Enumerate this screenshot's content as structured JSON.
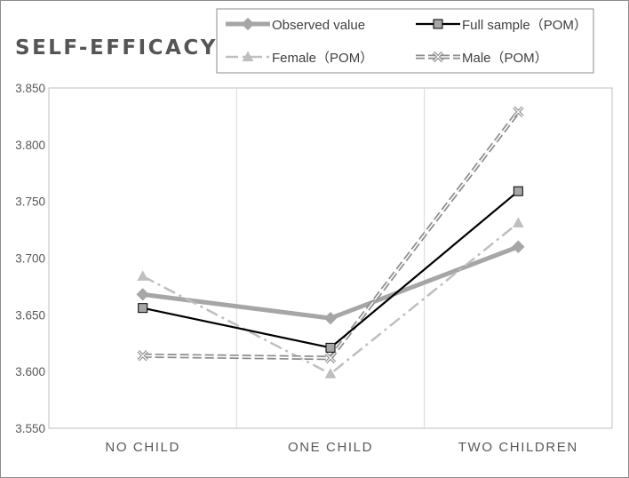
{
  "chart_data": {
    "type": "line",
    "title": "SELF-EFFICACY",
    "categories": [
      "NO CHILD",
      "ONE CHILD",
      "TWO CHILDREN"
    ],
    "ylim": [
      3.55,
      3.85
    ],
    "yticks": [
      "3.550",
      "3.600",
      "3.650",
      "3.700",
      "3.750",
      "3.800",
      "3.850"
    ],
    "xlabel": "",
    "ylabel": "",
    "grid": "vertical",
    "legend_position": "top-right",
    "series": [
      {
        "name": "Observed value",
        "values": [
          3.668,
          3.647,
          3.71
        ],
        "color": "#a6a6a6",
        "style": "solid",
        "marker": "diamond"
      },
      {
        "name": "Full sample（POM）",
        "values": [
          3.656,
          3.621,
          3.759
        ],
        "color": "#000000",
        "style": "solid",
        "marker": "square"
      },
      {
        "name": "Female（POM）",
        "values": [
          3.684,
          3.598,
          3.731
        ],
        "color": "#bfbfbf",
        "style": "dashdot",
        "marker": "triangle"
      },
      {
        "name": "Male（POM）",
        "values": [
          3.614,
          3.612,
          3.829
        ],
        "color": "#8c8c8c",
        "style": "double-dash",
        "marker": "cross"
      }
    ]
  }
}
